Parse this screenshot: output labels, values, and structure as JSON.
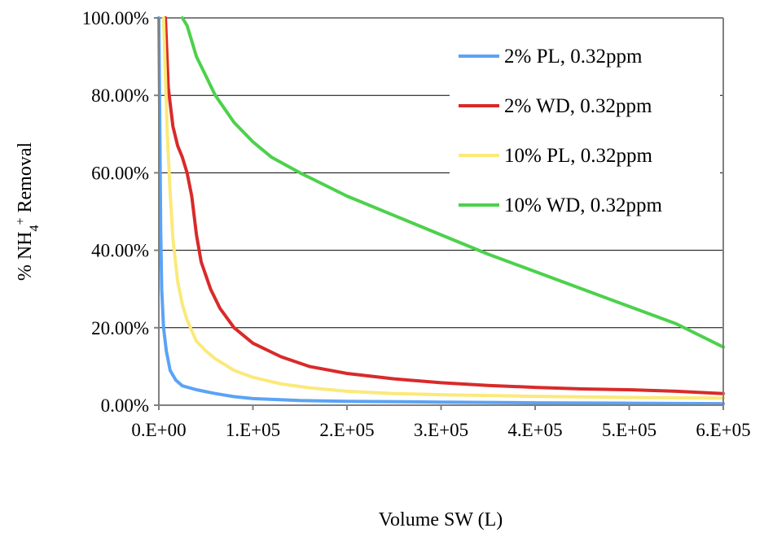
{
  "chart_data": {
    "type": "line",
    "title": "",
    "xlabel": "Volume SW (L)",
    "ylabel": {
      "prefix": "% NH",
      "subscript": "4",
      "superscript": "+",
      "suffix": " Removal"
    },
    "xlim": [
      0,
      600000
    ],
    "ylim": [
      0,
      1
    ],
    "x_ticks": [
      0,
      100000,
      200000,
      300000,
      400000,
      500000,
      600000
    ],
    "x_tick_labels": [
      "0.E+00",
      "1.E+05",
      "2.E+05",
      "3.E+05",
      "4.E+05",
      "5.E+05",
      "6.E+05"
    ],
    "y_ticks": [
      0,
      0.2,
      0.4,
      0.6,
      0.8,
      1.0
    ],
    "y_tick_labels": [
      "0.00%",
      "20.00%",
      "40.00%",
      "60.00%",
      "80.00%",
      "100.00%"
    ],
    "grid": "horizontal",
    "legend_position": "top-right",
    "series": [
      {
        "name": "2% PL, 0.32ppm",
        "color": "#5ba3f5",
        "points": [
          [
            0,
            1.0
          ],
          [
            1000,
            0.72
          ],
          [
            2000,
            0.45
          ],
          [
            3000,
            0.3
          ],
          [
            5000,
            0.2
          ],
          [
            8000,
            0.14
          ],
          [
            12000,
            0.09
          ],
          [
            18000,
            0.065
          ],
          [
            25000,
            0.05
          ],
          [
            40000,
            0.04
          ],
          [
            60000,
            0.03
          ],
          [
            80000,
            0.022
          ],
          [
            100000,
            0.017
          ],
          [
            150000,
            0.012
          ],
          [
            200000,
            0.01
          ],
          [
            300000,
            0.008
          ],
          [
            400000,
            0.006
          ],
          [
            500000,
            0.005
          ],
          [
            600000,
            0.004
          ]
        ]
      },
      {
        "name": "2% WD, 0.32ppm",
        "color": "#d92a2a",
        "points": [
          [
            7000,
            1.0
          ],
          [
            10000,
            0.82
          ],
          [
            15000,
            0.72
          ],
          [
            20000,
            0.67
          ],
          [
            25000,
            0.64
          ],
          [
            30000,
            0.6
          ],
          [
            35000,
            0.54
          ],
          [
            40000,
            0.44
          ],
          [
            45000,
            0.37
          ],
          [
            55000,
            0.3
          ],
          [
            65000,
            0.25
          ],
          [
            80000,
            0.2
          ],
          [
            100000,
            0.16
          ],
          [
            130000,
            0.125
          ],
          [
            160000,
            0.1
          ],
          [
            200000,
            0.082
          ],
          [
            250000,
            0.068
          ],
          [
            300000,
            0.058
          ],
          [
            350000,
            0.051
          ],
          [
            400000,
            0.046
          ],
          [
            450000,
            0.042
          ],
          [
            500000,
            0.04
          ],
          [
            550000,
            0.036
          ],
          [
            600000,
            0.03
          ]
        ]
      },
      {
        "name": "10% PL, 0.32ppm",
        "color": "#fbe97a",
        "points": [
          [
            5000,
            1.0
          ],
          [
            7000,
            0.85
          ],
          [
            9000,
            0.7
          ],
          [
            12000,
            0.55
          ],
          [
            15000,
            0.43
          ],
          [
            20000,
            0.32
          ],
          [
            25000,
            0.26
          ],
          [
            30000,
            0.22
          ],
          [
            40000,
            0.165
          ],
          [
            50000,
            0.14
          ],
          [
            60000,
            0.12
          ],
          [
            80000,
            0.09
          ],
          [
            100000,
            0.072
          ],
          [
            130000,
            0.055
          ],
          [
            160000,
            0.045
          ],
          [
            200000,
            0.036
          ],
          [
            250000,
            0.03
          ],
          [
            300000,
            0.027
          ],
          [
            400000,
            0.023
          ],
          [
            500000,
            0.02
          ],
          [
            600000,
            0.018
          ]
        ]
      },
      {
        "name": "10% WD, 0.32ppm",
        "color": "#4cd14c",
        "points": [
          [
            25000,
            1.0
          ],
          [
            30000,
            0.98
          ],
          [
            40000,
            0.9
          ],
          [
            50000,
            0.85
          ],
          [
            60000,
            0.8
          ],
          [
            80000,
            0.73
          ],
          [
            100000,
            0.68
          ],
          [
            120000,
            0.64
          ],
          [
            150000,
            0.6
          ],
          [
            200000,
            0.54
          ],
          [
            250000,
            0.49
          ],
          [
            300000,
            0.44
          ],
          [
            350000,
            0.39
          ],
          [
            400000,
            0.345
          ],
          [
            450000,
            0.3
          ],
          [
            500000,
            0.255
          ],
          [
            550000,
            0.21
          ],
          [
            600000,
            0.15
          ]
        ]
      }
    ]
  }
}
